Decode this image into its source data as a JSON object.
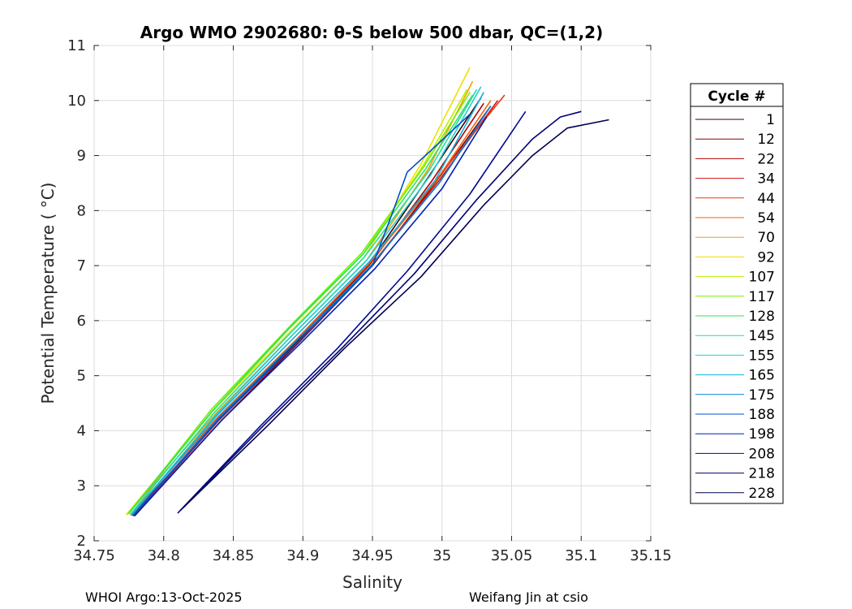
{
  "chart_data": {
    "type": "line",
    "title": "Argo WMO 2902680: θ-S below 500 dbar,  QC=(1,2)",
    "xlabel": "Salinity",
    "ylabel": "Potential Temperature ( °C)",
    "xlim": [
      34.75,
      35.15
    ],
    "ylim": [
      2,
      11
    ],
    "x_ticks": [
      34.75,
      34.8,
      34.85,
      34.9,
      34.95,
      35,
      35.05,
      35.1,
      35.15
    ],
    "x_tick_labels": [
      "34.75",
      "34.8",
      "34.85",
      "34.9",
      "34.95",
      "35",
      "35.05",
      "35.1",
      "35.15"
    ],
    "y_ticks": [
      2,
      3,
      4,
      5,
      6,
      7,
      8,
      9,
      10,
      11
    ],
    "y_tick_labels": [
      "2",
      "3",
      "4",
      "5",
      "6",
      "7",
      "8",
      "9",
      "10",
      "11"
    ],
    "grid": true,
    "legend": {
      "title": "Cycle #",
      "placement": "right outside",
      "entries": [
        {
          "name": "1",
          "color": "#3a0000"
        },
        {
          "name": "12",
          "color": "#8a0000"
        },
        {
          "name": "22",
          "color": "#b00000"
        },
        {
          "name": "34",
          "color": "#d81010"
        },
        {
          "name": "44",
          "color": "#e83a10"
        },
        {
          "name": "54",
          "color": "#f06010"
        },
        {
          "name": "70",
          "color": "#f5a000"
        },
        {
          "name": "92",
          "color": "#f0e000"
        },
        {
          "name": "107",
          "color": "#b8f000"
        },
        {
          "name": "117",
          "color": "#70f000"
        },
        {
          "name": "128",
          "color": "#30e060"
        },
        {
          "name": "145",
          "color": "#20e0a0"
        },
        {
          "name": "155",
          "color": "#20d0d0"
        },
        {
          "name": "165",
          "color": "#10b0e0"
        },
        {
          "name": "175",
          "color": "#0080d8"
        },
        {
          "name": "188",
          "color": "#0050c8"
        },
        {
          "name": "198",
          "color": "#0020b0"
        },
        {
          "name": "208",
          "color": "#000a90"
        },
        {
          "name": "218",
          "color": "#000070"
        },
        {
          "name": "228",
          "color": "#000050"
        }
      ]
    },
    "series": [
      {
        "color": "#3a0000",
        "x": [
          34.778,
          34.84,
          34.895,
          34.948,
          34.99,
          35.028
        ],
        "y": [
          2.45,
          4.2,
          5.6,
          7.05,
          8.6,
          10.05
        ]
      },
      {
        "color": "#8a0000",
        "x": [
          34.779,
          34.842,
          34.897,
          34.95,
          34.995,
          35.035
        ],
        "y": [
          2.45,
          4.2,
          5.6,
          7.0,
          8.5,
          9.9
        ]
      },
      {
        "color": "#b00000",
        "x": [
          34.777,
          34.84,
          34.895,
          34.948,
          34.993,
          35.03
        ],
        "y": [
          2.46,
          4.22,
          5.62,
          7.02,
          8.55,
          9.95
        ]
      },
      {
        "color": "#d81010",
        "x": [
          34.778,
          34.84,
          34.896,
          34.949,
          34.998,
          35.04
        ],
        "y": [
          2.45,
          4.2,
          5.6,
          7.0,
          8.55,
          10.0
        ]
      },
      {
        "color": "#e83a10",
        "x": [
          34.776,
          34.838,
          34.894,
          34.947,
          34.997,
          35.045
        ],
        "y": [
          2.47,
          4.22,
          5.62,
          7.02,
          8.6,
          10.1
        ]
      },
      {
        "color": "#f06010",
        "x": [
          34.776,
          34.839,
          34.895,
          34.948,
          34.996,
          35.035
        ],
        "y": [
          2.47,
          4.25,
          5.65,
          7.05,
          8.55,
          10.0
        ]
      },
      {
        "color": "#f5a000",
        "x": [
          34.774,
          34.837,
          34.893,
          34.946,
          34.99,
          35.022
        ],
        "y": [
          2.48,
          4.3,
          5.75,
          7.1,
          8.75,
          10.35
        ]
      },
      {
        "color": "#f0e000",
        "x": [
          34.773,
          34.835,
          34.891,
          34.944,
          34.985,
          35.02
        ],
        "y": [
          2.47,
          4.35,
          5.8,
          7.15,
          8.85,
          10.6
        ]
      },
      {
        "color": "#b8f000",
        "x": [
          34.774,
          34.835,
          34.89,
          34.943,
          34.986,
          35.018
        ],
        "y": [
          2.5,
          4.35,
          5.85,
          7.2,
          8.8,
          10.2
        ]
      },
      {
        "color": "#70f000",
        "x": [
          34.775,
          34.834,
          34.89,
          34.942,
          34.987,
          35.02
        ],
        "y": [
          2.5,
          4.38,
          5.88,
          7.22,
          8.8,
          10.15
        ]
      },
      {
        "color": "#30e060",
        "x": [
          34.775,
          34.835,
          34.89,
          34.943,
          34.988,
          35.022
        ],
        "y": [
          2.5,
          4.36,
          5.86,
          7.2,
          8.75,
          10.1
        ]
      },
      {
        "color": "#20e0a0",
        "x": [
          34.776,
          34.836,
          34.892,
          34.944,
          34.99,
          35.025
        ],
        "y": [
          2.48,
          4.32,
          5.8,
          7.15,
          8.7,
          10.2
        ]
      },
      {
        "color": "#20d0d0",
        "x": [
          34.777,
          34.838,
          34.893,
          34.946,
          34.992,
          35.028
        ],
        "y": [
          2.47,
          4.3,
          5.75,
          7.1,
          8.65,
          10.25
        ]
      },
      {
        "color": "#10b0e0",
        "x": [
          34.777,
          34.838,
          34.894,
          34.947,
          34.995,
          35.03
        ],
        "y": [
          2.47,
          4.27,
          5.7,
          7.05,
          8.55,
          10.15
        ]
      },
      {
        "color": "#0080d8",
        "x": [
          34.778,
          34.84,
          34.896,
          34.949,
          34.998,
          35.035
        ],
        "y": [
          2.46,
          4.25,
          5.65,
          7.0,
          8.5,
          9.9
        ]
      },
      {
        "color": "#0050c8",
        "x": [
          34.778,
          34.84,
          34.897,
          34.95,
          34.965,
          34.975,
          34.988,
          35.003,
          35.02
        ],
        "y": [
          2.46,
          4.22,
          5.62,
          7.0,
          8.0,
          8.7,
          9.0,
          9.35,
          9.75
        ]
      },
      {
        "color": "#0020b0",
        "x": [
          34.779,
          34.842,
          34.898,
          34.952,
          35.0,
          35.032
        ],
        "y": [
          2.45,
          4.2,
          5.58,
          6.95,
          8.4,
          9.7
        ]
      },
      {
        "color": "#000a90",
        "x": [
          34.81,
          34.87,
          34.925,
          34.975,
          35.02,
          35.06
        ],
        "y": [
          2.5,
          4.1,
          5.5,
          6.9,
          8.3,
          9.8
        ]
      },
      {
        "color": "#000070",
        "x": [
          34.812,
          34.872,
          34.928,
          34.98,
          35.025,
          35.065,
          35.085,
          35.1
        ],
        "y": [
          2.55,
          4.1,
          5.5,
          6.85,
          8.2,
          9.3,
          9.7,
          9.8
        ]
      },
      {
        "color": "#000050",
        "x": [
          34.814,
          34.875,
          34.93,
          34.985,
          35.03,
          35.065,
          35.09,
          35.12
        ],
        "y": [
          2.6,
          4.1,
          5.5,
          6.8,
          8.1,
          9.0,
          9.5,
          9.65
        ]
      }
    ]
  },
  "footer": {
    "left": "WHOI Argo:13-Oct-2025",
    "right": "Weifang Jin at csio"
  }
}
